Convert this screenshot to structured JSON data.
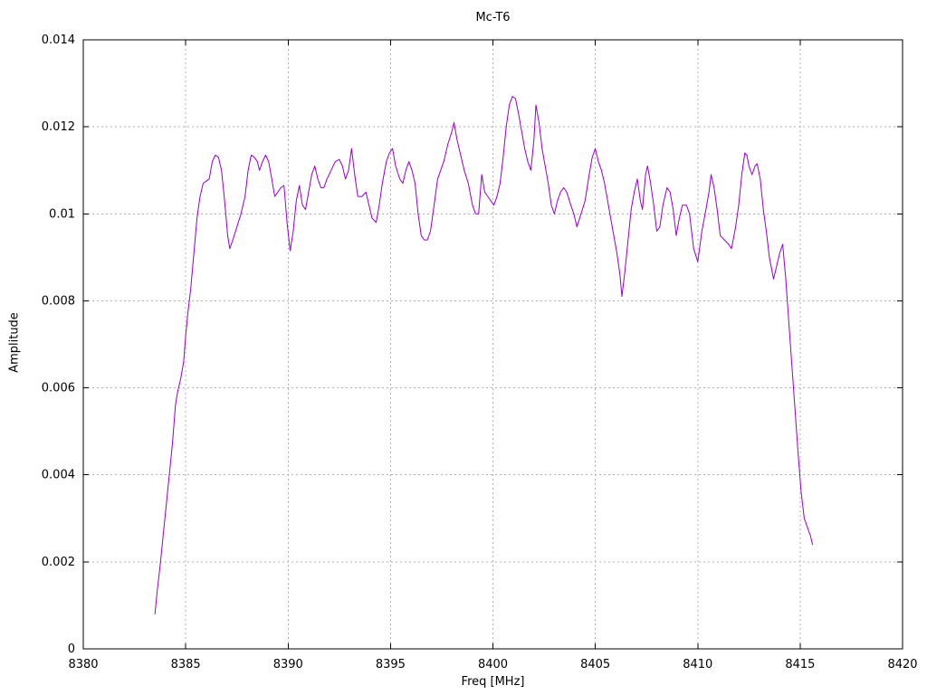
{
  "chart_data": {
    "type": "line",
    "title": "Mc-T6",
    "xlabel": "Freq [MHz]",
    "ylabel": "Amplitude",
    "xlim": [
      8380,
      8420
    ],
    "ylim": [
      0,
      0.014
    ],
    "x_ticks": [
      8380,
      8385,
      8390,
      8395,
      8400,
      8405,
      8410,
      8415,
      8420
    ],
    "x_tick_labels": [
      "8380",
      "8385",
      "8390",
      "8395",
      "8400",
      "8405",
      "8410",
      "8415",
      "8420"
    ],
    "y_ticks": [
      0,
      0.002,
      0.004,
      0.006,
      0.008,
      0.01,
      0.012,
      0.014
    ],
    "y_tick_labels": [
      "0",
      "0.002",
      "0.004",
      "0.006",
      "0.008",
      "0.01",
      "0.012",
      "0.014"
    ],
    "grid": true,
    "legend": "none",
    "line_color": "#9400d3",
    "grid_color": "#b0b0b0",
    "border_color": "#000000",
    "background": "#ffffff",
    "series": [
      {
        "name": "Mc-T6",
        "points": [
          [
            8383.5,
            0.0008
          ],
          [
            8383.6,
            0.0013
          ],
          [
            8383.75,
            0.0019
          ],
          [
            8383.9,
            0.0026
          ],
          [
            8384.05,
            0.0033
          ],
          [
            8384.2,
            0.004
          ],
          [
            8384.35,
            0.0047
          ],
          [
            8384.5,
            0.0056
          ],
          [
            8384.6,
            0.0059
          ],
          [
            8384.75,
            0.0062
          ],
          [
            8384.9,
            0.0066
          ],
          [
            8385.0,
            0.0072
          ],
          [
            8385.1,
            0.0077
          ],
          [
            8385.25,
            0.0083
          ],
          [
            8385.4,
            0.0091
          ],
          [
            8385.55,
            0.0099
          ],
          [
            8385.7,
            0.0104
          ],
          [
            8385.85,
            0.0107
          ],
          [
            8386.0,
            0.01075
          ],
          [
            8386.15,
            0.0108
          ],
          [
            8386.3,
            0.0112
          ],
          [
            8386.45,
            0.01135
          ],
          [
            8386.6,
            0.0113
          ],
          [
            8386.75,
            0.011
          ],
          [
            8386.9,
            0.0103
          ],
          [
            8387.05,
            0.0095
          ],
          [
            8387.15,
            0.0092
          ],
          [
            8387.3,
            0.0094
          ],
          [
            8387.5,
            0.0097
          ],
          [
            8387.7,
            0.01
          ],
          [
            8387.9,
            0.0104
          ],
          [
            8388.05,
            0.011
          ],
          [
            8388.2,
            0.01135
          ],
          [
            8388.35,
            0.0113
          ],
          [
            8388.5,
            0.0112
          ],
          [
            8388.6,
            0.011
          ],
          [
            8388.75,
            0.0112
          ],
          [
            8388.9,
            0.01135
          ],
          [
            8389.05,
            0.0112
          ],
          [
            8389.2,
            0.0108
          ],
          [
            8389.35,
            0.0104
          ],
          [
            8389.5,
            0.0105
          ],
          [
            8389.65,
            0.0106
          ],
          [
            8389.8,
            0.01065
          ],
          [
            8389.95,
            0.0098
          ],
          [
            8390.1,
            0.00915
          ],
          [
            8390.25,
            0.0096
          ],
          [
            8390.4,
            0.0103
          ],
          [
            8390.55,
            0.01065
          ],
          [
            8390.7,
            0.0102
          ],
          [
            8390.85,
            0.0101
          ],
          [
            8391.0,
            0.0105
          ],
          [
            8391.15,
            0.0109
          ],
          [
            8391.3,
            0.0111
          ],
          [
            8391.45,
            0.0108
          ],
          [
            8391.6,
            0.0106
          ],
          [
            8391.75,
            0.0106
          ],
          [
            8391.9,
            0.0108
          ],
          [
            8392.1,
            0.011
          ],
          [
            8392.3,
            0.0112
          ],
          [
            8392.5,
            0.01125
          ],
          [
            8392.65,
            0.0111
          ],
          [
            8392.8,
            0.0108
          ],
          [
            8392.95,
            0.011
          ],
          [
            8393.1,
            0.0115
          ],
          [
            8393.25,
            0.0109
          ],
          [
            8393.4,
            0.0104
          ],
          [
            8393.6,
            0.0104
          ],
          [
            8393.8,
            0.0105
          ],
          [
            8393.95,
            0.0102
          ],
          [
            8394.1,
            0.0099
          ],
          [
            8394.3,
            0.0098
          ],
          [
            8394.45,
            0.0102
          ],
          [
            8394.6,
            0.0107
          ],
          [
            8394.8,
            0.0112
          ],
          [
            8394.95,
            0.0114
          ],
          [
            8395.1,
            0.0115
          ],
          [
            8395.25,
            0.0111
          ],
          [
            8395.45,
            0.0108
          ],
          [
            8395.6,
            0.0107
          ],
          [
            8395.75,
            0.011
          ],
          [
            8395.9,
            0.0112
          ],
          [
            8396.05,
            0.011
          ],
          [
            8396.2,
            0.0107
          ],
          [
            8396.35,
            0.01
          ],
          [
            8396.5,
            0.0095
          ],
          [
            8396.65,
            0.0094
          ],
          [
            8396.8,
            0.0094
          ],
          [
            8396.95,
            0.0096
          ],
          [
            8397.1,
            0.0101
          ],
          [
            8397.3,
            0.0108
          ],
          [
            8397.45,
            0.011
          ],
          [
            8397.6,
            0.0112
          ],
          [
            8397.8,
            0.0116
          ],
          [
            8398.0,
            0.0119
          ],
          [
            8398.1,
            0.0121
          ],
          [
            8398.25,
            0.0117
          ],
          [
            8398.45,
            0.0113
          ],
          [
            8398.6,
            0.011
          ],
          [
            8398.8,
            0.0107
          ],
          [
            8399.0,
            0.0102
          ],
          [
            8399.15,
            0.01
          ],
          [
            8399.3,
            0.01
          ],
          [
            8399.45,
            0.0109
          ],
          [
            8399.6,
            0.0105
          ],
          [
            8399.75,
            0.0104
          ],
          [
            8399.9,
            0.0103
          ],
          [
            8400.05,
            0.0102
          ],
          [
            8400.2,
            0.0104
          ],
          [
            8400.35,
            0.0107
          ],
          [
            8400.5,
            0.0113
          ],
          [
            8400.65,
            0.012
          ],
          [
            8400.8,
            0.0125
          ],
          [
            8400.95,
            0.0127
          ],
          [
            8401.1,
            0.01265
          ],
          [
            8401.25,
            0.0123
          ],
          [
            8401.4,
            0.0119
          ],
          [
            8401.55,
            0.0115
          ],
          [
            8401.7,
            0.0112
          ],
          [
            8401.85,
            0.011
          ],
          [
            8402.0,
            0.0117
          ],
          [
            8402.1,
            0.0125
          ],
          [
            8402.25,
            0.0121
          ],
          [
            8402.4,
            0.0115
          ],
          [
            8402.55,
            0.0111
          ],
          [
            8402.7,
            0.0107
          ],
          [
            8402.85,
            0.0102
          ],
          [
            8403.0,
            0.01
          ],
          [
            8403.15,
            0.0103
          ],
          [
            8403.3,
            0.0105
          ],
          [
            8403.45,
            0.0106
          ],
          [
            8403.6,
            0.0105
          ],
          [
            8403.8,
            0.0102
          ],
          [
            8403.95,
            0.01
          ],
          [
            8404.1,
            0.0097
          ],
          [
            8404.3,
            0.01
          ],
          [
            8404.5,
            0.0103
          ],
          [
            8404.7,
            0.0109
          ],
          [
            8404.85,
            0.0113
          ],
          [
            8405.0,
            0.0115
          ],
          [
            8405.15,
            0.0112
          ],
          [
            8405.3,
            0.011
          ],
          [
            8405.45,
            0.0107
          ],
          [
            8405.6,
            0.0103
          ],
          [
            8405.75,
            0.0099
          ],
          [
            8405.9,
            0.0095
          ],
          [
            8406.05,
            0.0091
          ],
          [
            8406.2,
            0.0086
          ],
          [
            8406.3,
            0.0081
          ],
          [
            8406.45,
            0.0087
          ],
          [
            8406.6,
            0.0094
          ],
          [
            8406.75,
            0.0101
          ],
          [
            8406.9,
            0.0105
          ],
          [
            8407.05,
            0.0108
          ],
          [
            8407.2,
            0.0103
          ],
          [
            8407.3,
            0.0101
          ],
          [
            8407.45,
            0.0109
          ],
          [
            8407.55,
            0.0111
          ],
          [
            8407.7,
            0.0107
          ],
          [
            8407.85,
            0.0102
          ],
          [
            8408.0,
            0.0096
          ],
          [
            8408.15,
            0.0097
          ],
          [
            8408.3,
            0.0102
          ],
          [
            8408.5,
            0.0106
          ],
          [
            8408.65,
            0.0105
          ],
          [
            8408.8,
            0.0101
          ],
          [
            8408.95,
            0.0095
          ],
          [
            8409.1,
            0.0099
          ],
          [
            8409.25,
            0.0102
          ],
          [
            8409.45,
            0.0102
          ],
          [
            8409.6,
            0.01
          ],
          [
            8409.8,
            0.0092
          ],
          [
            8410.0,
            0.0089
          ],
          [
            8410.2,
            0.0096
          ],
          [
            8410.4,
            0.0101
          ],
          [
            8410.55,
            0.0105
          ],
          [
            8410.65,
            0.0109
          ],
          [
            8410.8,
            0.0106
          ],
          [
            8410.95,
            0.0101
          ],
          [
            8411.1,
            0.0095
          ],
          [
            8411.3,
            0.0094
          ],
          [
            8411.5,
            0.0093
          ],
          [
            8411.65,
            0.0092
          ],
          [
            8411.85,
            0.0097
          ],
          [
            8412.0,
            0.0102
          ],
          [
            8412.15,
            0.0109
          ],
          [
            8412.3,
            0.0114
          ],
          [
            8412.4,
            0.01135
          ],
          [
            8412.5,
            0.0111
          ],
          [
            8412.65,
            0.0109
          ],
          [
            8412.8,
            0.0111
          ],
          [
            8412.9,
            0.01115
          ],
          [
            8413.05,
            0.0108
          ],
          [
            8413.2,
            0.0101
          ],
          [
            8413.35,
            0.0096
          ],
          [
            8413.5,
            0.009
          ],
          [
            8413.7,
            0.0085
          ],
          [
            8413.85,
            0.0088
          ],
          [
            8414.0,
            0.0091
          ],
          [
            8414.15,
            0.0093
          ],
          [
            8414.3,
            0.0085
          ],
          [
            8414.45,
            0.0075
          ],
          [
            8414.6,
            0.0065
          ],
          [
            8414.75,
            0.0055
          ],
          [
            8414.9,
            0.0045
          ],
          [
            8415.05,
            0.0036
          ],
          [
            8415.2,
            0.003
          ],
          [
            8415.35,
            0.0028
          ],
          [
            8415.5,
            0.0026
          ],
          [
            8415.6,
            0.0024
          ]
        ]
      }
    ]
  }
}
